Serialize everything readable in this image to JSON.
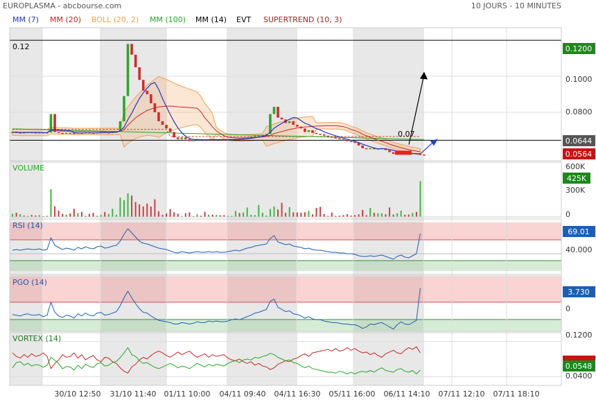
{
  "header": {
    "title": "EUROPLASMA - abcbourse.com",
    "period": "10 JOURS - 10 MINUTES"
  },
  "legend": [
    {
      "label": "MM (7)",
      "color": "#2233cc"
    },
    {
      "label": "MM (20)",
      "color": "#cc2222"
    },
    {
      "label": "BOLL (20, 2)",
      "color": "#f0a050"
    },
    {
      "label": "MM (100)",
      "color": "#22aa22"
    },
    {
      "label": "MM (14)",
      "color": "#000000"
    },
    {
      "label": "EVT",
      "color": "#000000"
    },
    {
      "label": "SUPERTREND (10, 3)",
      "color": "#aa2222"
    }
  ],
  "price_panel": {
    "hline_label": "0.12",
    "annotation": "0.07",
    "yticks": [
      "0.1000",
      "0.0800"
    ],
    "badges": [
      {
        "text": "0.1200",
        "value": 0.12,
        "color": "#1a8a1a"
      },
      {
        "text": "0.0644",
        "value": 0.0644,
        "color": "#555555"
      },
      {
        "text": "0.0564",
        "value": 0.0564,
        "color": "#cc1111"
      }
    ]
  },
  "volume_panel": {
    "label": "VOLUME",
    "yticks": [
      "600K",
      "300K",
      "0"
    ],
    "badge": {
      "text": "425K",
      "value": 425000,
      "color": "#1a8a1a"
    }
  },
  "rsi_panel": {
    "label": "RSI (14)",
    "ytick": "40.000",
    "badge": {
      "text": "69.01",
      "value": 69.01,
      "color": "#1a5fb4"
    }
  },
  "pgo_panel": {
    "label": "PGO (14)",
    "ytick": "0",
    "badge": {
      "text": "3.730",
      "value": 3.73,
      "color": "#1a5fb4"
    }
  },
  "vortex_panel": {
    "label": "VORTEX (14)",
    "yticks": [
      "0.1200",
      "0.0400"
    ],
    "badges": [
      {
        "text": "",
        "color": "#cc1111"
      },
      {
        "text": "0.0548",
        "color": "#1a8a1a"
      }
    ]
  },
  "xaxis": {
    "labels": [
      "30/10 12:50",
      "31/10 11:40",
      "01/11 10:00",
      "04/11 09:40",
      "04/11 16:30",
      "05/11 16:00",
      "06/11 14:10",
      "07/11 12:10",
      "07/11 18:10"
    ]
  },
  "chart_data": {
    "type": "line",
    "title": "EUROPLASMA - abcbourse.com",
    "period": "10 JOURS - 10 MINUTES",
    "x_ticks": [
      "30/10 12:50",
      "31/10 11:40",
      "01/11 10:00",
      "04/11 09:40",
      "04/11 16:30",
      "05/11 16:00",
      "06/11 14:10",
      "07/11 12:10",
      "07/11 18:10"
    ],
    "price": {
      "ylim": [
        0.053,
        0.127
      ],
      "yticks": [
        0.08,
        0.1
      ],
      "close": [
        0.069,
        0.0688,
        0.0686,
        0.0688,
        0.069,
        0.0688,
        0.0686,
        0.0688,
        0.0685,
        0.0687,
        0.079,
        0.069,
        0.0685,
        0.0682,
        0.0686,
        0.0685,
        0.068,
        0.0686,
        0.0684,
        0.0688,
        0.0686,
        0.0685,
        0.0688,
        0.069,
        0.0687,
        0.0688,
        0.069,
        0.0692,
        0.075,
        0.089,
        0.118,
        0.112,
        0.105,
        0.098,
        0.092,
        0.09,
        0.085,
        0.08,
        0.075,
        0.073,
        0.071,
        0.069,
        0.066,
        0.065,
        0.066,
        0.065,
        0.064,
        0.0645,
        0.065,
        0.0648,
        0.0645,
        0.065,
        0.0648,
        0.065,
        0.0648,
        0.0645,
        0.0648,
        0.065,
        0.0652,
        0.065,
        0.0655,
        0.066,
        0.0665,
        0.067,
        0.0672,
        0.0675,
        0.068,
        0.079,
        0.083,
        0.077,
        0.076,
        0.074,
        0.075,
        0.073,
        0.072,
        0.071,
        0.069,
        0.07,
        0.0685,
        0.068,
        0.0678,
        0.067,
        0.0665,
        0.066,
        0.0655,
        0.065,
        0.0645,
        0.064,
        0.0635,
        0.063,
        0.0615,
        0.06,
        0.0598,
        0.06,
        0.0595,
        0.0598,
        0.06,
        0.059,
        0.0578,
        0.0568,
        0.0572,
        0.0575,
        0.057,
        0.0568,
        0.0572,
        0.0568,
        0.0565,
        0.0564
      ],
      "mm7": [
        0.0689,
        0.0689,
        0.0688,
        0.0688,
        0.0688,
        0.0688,
        0.0688,
        0.0688,
        0.0687,
        0.0687,
        0.0702,
        0.0703,
        0.0702,
        0.07,
        0.0699,
        0.0697,
        0.0686,
        0.0685,
        0.0684,
        0.0685,
        0.0685,
        0.0685,
        0.0685,
        0.0686,
        0.0687,
        0.0687,
        0.0688,
        0.0689,
        0.0697,
        0.0717,
        0.0759,
        0.0795,
        0.0837,
        0.0877,
        0.0907,
        0.0934,
        0.0957,
        0.0965,
        0.0927,
        0.0876,
        0.0831,
        0.0788,
        0.0747,
        0.0713,
        0.0686,
        0.0667,
        0.0654,
        0.0649,
        0.0648,
        0.0647,
        0.0647,
        0.0647,
        0.0648,
        0.0648,
        0.0648,
        0.0648,
        0.0648,
        0.0648,
        0.0649,
        0.065,
        0.0651,
        0.0653,
        0.0655,
        0.0658,
        0.0662,
        0.0666,
        0.0671,
        0.0689,
        0.0711,
        0.0725,
        0.0738,
        0.075,
        0.0761,
        0.0771,
        0.0768,
        0.0753,
        0.0739,
        0.0731,
        0.0719,
        0.0709,
        0.0701,
        0.0691,
        0.0683,
        0.0676,
        0.0669,
        0.0663,
        0.0656,
        0.065,
        0.0644,
        0.0638,
        0.0631,
        0.0622,
        0.0615,
        0.0608,
        0.0602,
        0.0596,
        0.0598,
        0.0596,
        0.0593,
        0.0588,
        0.0583,
        0.0579,
        0.0575,
        0.0571,
        0.0571,
        0.057,
        0.0569
      ],
      "mm20": [
        0.0689,
        0.0689,
        0.0688,
        0.0688,
        0.0688,
        0.0688,
        0.0688,
        0.0688,
        0.0687,
        0.0687,
        0.0697,
        0.0697,
        0.0696,
        0.0695,
        0.0695,
        0.0694,
        0.0693,
        0.0693,
        0.0693,
        0.0693,
        0.0693,
        0.0693,
        0.0693,
        0.0693,
        0.0693,
        0.0693,
        0.0693,
        0.0693,
        0.0693,
        0.0703,
        0.0728,
        0.0749,
        0.0769,
        0.0784,
        0.0797,
        0.081,
        0.0818,
        0.0825,
        0.0829,
        0.0832,
        0.0834,
        0.0834,
        0.0833,
        0.083,
        0.0829,
        0.0828,
        0.0826,
        0.0825,
        0.0822,
        0.0802,
        0.0768,
        0.0745,
        0.0718,
        0.0697,
        0.0682,
        0.0669,
        0.0661,
        0.0659,
        0.0658,
        0.0657,
        0.0657,
        0.0658,
        0.0659,
        0.066,
        0.0661,
        0.0663,
        0.0665,
        0.0672,
        0.0681,
        0.0687,
        0.0693,
        0.0698,
        0.0704,
        0.0708,
        0.0713,
        0.0716,
        0.0718,
        0.072,
        0.0722,
        0.0723,
        0.0724,
        0.0725,
        0.0725,
        0.0725,
        0.0725,
        0.0723,
        0.072,
        0.0714,
        0.0704,
        0.0698,
        0.0689,
        0.0678,
        0.0669,
        0.0661,
        0.0653,
        0.0645,
        0.0639,
        0.0631,
        0.0623,
        0.0615,
        0.0609,
        0.0603,
        0.0598,
        0.0592,
        0.0588,
        0.0584,
        0.058
      ],
      "mm100_start": 0.0708,
      "mm100_end": 0.0648,
      "supertrend": [
        0.0705,
        0.0705,
        0.0705,
        0.0705,
        0.0705,
        0.0705,
        0.0705,
        0.0705,
        0.0705,
        0.0705,
        0.0705,
        0.0705,
        0.0705,
        0.0705,
        0.0705,
        0.0705,
        0.0705,
        0.0705,
        0.0705,
        0.0705,
        0.0705,
        0.0705,
        0.0705,
        0.0705,
        0.0705,
        0.0705,
        0.0705,
        0.0705,
        0.0705,
        0.0705,
        0.0705,
        0.0705,
        0.0705,
        0.0705,
        0.0705,
        0.0705,
        0.0705,
        0.0705,
        0.0705,
        0.0705,
        0.0705,
        0.0665,
        0.0665,
        0.0665,
        0.0665,
        0.0665,
        0.0665,
        0.0665,
        0.0665,
        0.0665,
        0.0665,
        0.0665,
        0.0665,
        0.0665,
        0.0665,
        0.0665,
        0.0665,
        0.0665,
        0.0665,
        0.0665,
        0.0665,
        0.0665,
        0.0665,
        0.0665,
        0.0665,
        0.0665,
        0.0665,
        0.0665,
        0.0665,
        0.0665,
        0.0665,
        0.0665,
        0.0665,
        0.0665,
        0.0665,
        0.0665,
        0.0665,
        0.0665,
        0.0665,
        0.0665,
        0.0665,
        0.0665,
        0.0665,
        0.0665,
        0.0665,
        0.0665,
        0.0665,
        0.0665,
        0.0665,
        0.0665,
        0.0665,
        0.0665,
        0.0665,
        0.0665,
        0.0665,
        0.0665,
        0.0665,
        0.0665,
        0.0665,
        0.0665,
        0.0665,
        0.0665,
        0.0665,
        0.0665,
        0.0665,
        0.0665,
        0.0665
      ],
      "hlines": [
        0.12,
        0.0644
      ],
      "arrow_up": {
        "from": [
          0.0632,
          0.062
        ],
        "to": [
          0.0612,
          0.101
        ]
      },
      "arrow_right": {
        "from": [
          0.0612,
          0.057
        ],
        "to": [
          0.0625,
          0.0644
        ]
      }
    },
    "volume": {
      "ylim": [
        0,
        650000
      ],
      "yticks": [
        0,
        300000,
        600000
      ],
      "values": [
        38000,
        51000,
        34000,
        17000,
        13000,
        25000,
        17000,
        22000,
        8000,
        13000,
        330000,
        126000,
        76000,
        35000,
        27000,
        42000,
        97000,
        47000,
        61000,
        14000,
        38000,
        48000,
        14000,
        27000,
        59000,
        35000,
        97000,
        27000,
        230000,
        200000,
        280000,
        254000,
        178000,
        150000,
        125000,
        159000,
        123000,
        210000,
        66000,
        25000,
        41000,
        93000,
        56000,
        38000,
        9000,
        45000,
        53000,
        10000,
        31000,
        15000,
        60000,
        27000,
        28000,
        24000,
        21000,
        23000,
        11000,
        13000,
        71000,
        47000,
        53000,
        111000,
        26000,
        23000,
        141000,
        49000,
        17000,
        95000,
        124000,
        89000,
        168000,
        49000,
        116000,
        55000,
        53000,
        50000,
        56000,
        73000,
        30000,
        107000,
        120000,
        33000,
        11000,
        52000,
        12000,
        16000,
        22000,
        32000,
        17000,
        22000,
        31000,
        83000,
        21000,
        107000,
        50000,
        43000,
        42000,
        32000,
        112000,
        29000,
        43000,
        75000,
        27000,
        29000,
        48000,
        60000,
        425000
      ],
      "up": [
        true,
        false,
        true,
        false,
        true,
        false,
        false,
        true,
        false,
        true,
        true,
        false,
        false,
        false,
        true,
        false,
        false,
        true,
        false,
        true,
        false,
        false,
        true,
        true,
        false,
        true,
        true,
        true,
        true,
        true,
        true,
        false,
        false,
        false,
        false,
        false,
        false,
        false,
        false,
        false,
        false,
        false,
        false,
        false,
        true,
        false,
        false,
        true,
        true,
        false,
        false,
        true,
        false,
        true,
        false,
        false,
        true,
        true,
        true,
        false,
        true,
        true,
        true,
        true,
        true,
        true,
        true,
        true,
        true,
        false,
        false,
        false,
        true,
        false,
        false,
        false,
        false,
        true,
        false,
        false,
        false,
        false,
        false,
        false,
        false,
        false,
        false,
        false,
        false,
        false,
        false,
        false,
        false,
        true,
        false,
        true,
        true,
        false,
        false,
        false,
        true,
        true,
        false,
        false,
        true,
        false,
        true
      ]
    },
    "rsi": {
      "ylim": [
        10,
        90
      ],
      "upper_band": [
        60,
        85
      ],
      "lower_band": [
        15,
        30
      ],
      "ytick": 40,
      "last": 69.01,
      "values": [
        45,
        46,
        45,
        46,
        47,
        46,
        46,
        47,
        45,
        46,
        63,
        52,
        49,
        46,
        48,
        47,
        45,
        49,
        47,
        50,
        48,
        47,
        50,
        51,
        48,
        49,
        51,
        52,
        58,
        68,
        76,
        70,
        64,
        58,
        55,
        54,
        52,
        50,
        48,
        47,
        46,
        44,
        42,
        41,
        43,
        42,
        41,
        42,
        43,
        42,
        42,
        43,
        42,
        43,
        42,
        42,
        43,
        44,
        45,
        44,
        46,
        48,
        49,
        51,
        52,
        53,
        54,
        62,
        66,
        57,
        55,
        53,
        54,
        51,
        50,
        49,
        47,
        48,
        46,
        45,
        45,
        44,
        43,
        42,
        42,
        41,
        41,
        40,
        40,
        39,
        37,
        36,
        36,
        37,
        36,
        37,
        38,
        36,
        34,
        32,
        36,
        38,
        35,
        34,
        37,
        40,
        69
      ]
    },
    "pgo": {
      "ylim": [
        -2.2,
        5.4
      ],
      "ytick": 0,
      "last": 3.73,
      "values": [
        0.1,
        0.0,
        -0.1,
        0.1,
        0.2,
        0.0,
        0.0,
        0.1,
        -0.2,
        0.0,
        1.8,
        0.4,
        -0.1,
        -0.3,
        0.0,
        -0.1,
        -0.4,
        0.2,
        -0.1,
        0.3,
        0.0,
        -0.1,
        0.3,
        0.4,
        0.0,
        0.1,
        0.3,
        0.5,
        1.3,
        2.4,
        3.3,
        2.4,
        1.6,
        0.9,
        0.4,
        0.3,
        -0.1,
        -0.4,
        -0.7,
        -0.8,
        -0.9,
        -1.0,
        -1.2,
        -1.2,
        -1.0,
        -1.1,
        -1.2,
        -1.1,
        -0.9,
        -1.0,
        -1.0,
        -0.8,
        -0.9,
        -0.8,
        -0.9,
        -0.9,
        -0.8,
        -0.6,
        -0.5,
        -0.6,
        -0.4,
        -0.2,
        0.0,
        0.3,
        0.4,
        0.6,
        0.8,
        1.9,
        2.2,
        1.1,
        0.8,
        0.5,
        0.6,
        0.2,
        0.1,
        -0.1,
        -0.4,
        -0.2,
        -0.5,
        -0.6,
        -0.6,
        -0.8,
        -0.9,
        -1.0,
        -1.0,
        -1.1,
        -1.2,
        -1.2,
        -1.3,
        -1.3,
        -1.5,
        -1.8,
        -1.6,
        -1.2,
        -1.3,
        -1.1,
        -1.0,
        -1.3,
        -1.6,
        -1.9,
        -1.3,
        -0.9,
        -1.2,
        -1.3,
        -1.0,
        -0.7,
        3.73
      ]
    },
    "vortex": {
      "ylim": [
        0.02,
        0.14
      ],
      "yticks": [
        0.04,
        0.12
      ],
      "vi_plus_last": 0.0548,
      "vi_plus": [
        0.06,
        0.072,
        0.074,
        0.066,
        0.07,
        0.064,
        0.067,
        0.066,
        0.061,
        0.066,
        0.084,
        0.077,
        0.07,
        0.058,
        0.063,
        0.062,
        0.055,
        0.066,
        0.058,
        0.068,
        0.063,
        0.061,
        0.069,
        0.072,
        0.064,
        0.066,
        0.072,
        0.075,
        0.083,
        0.094,
        0.106,
        0.09,
        0.086,
        0.076,
        0.07,
        0.072,
        0.066,
        0.061,
        0.058,
        0.062,
        0.066,
        0.07,
        0.066,
        0.06,
        0.064,
        0.062,
        0.058,
        0.064,
        0.07,
        0.066,
        0.062,
        0.068,
        0.064,
        0.068,
        0.066,
        0.064,
        0.07,
        0.074,
        0.076,
        0.072,
        0.078,
        0.08,
        0.078,
        0.084,
        0.082,
        0.086,
        0.088,
        0.093,
        0.09,
        0.084,
        0.08,
        0.076,
        0.078,
        0.072,
        0.07,
        0.064,
        0.06,
        0.064,
        0.058,
        0.056,
        0.054,
        0.052,
        0.05,
        0.05,
        0.048,
        0.052,
        0.05,
        0.046,
        0.05,
        0.046,
        0.05,
        0.052,
        0.05,
        0.054,
        0.05,
        0.056,
        0.06,
        0.054,
        0.052,
        0.05,
        0.056,
        0.058,
        0.052,
        0.05,
        0.054,
        0.046,
        0.0548
      ],
      "vi_minus": [
        0.094,
        0.086,
        0.082,
        0.09,
        0.084,
        0.092,
        0.086,
        0.088,
        0.094,
        0.086,
        0.058,
        0.07,
        0.078,
        0.09,
        0.084,
        0.086,
        0.094,
        0.082,
        0.09,
        0.078,
        0.084,
        0.088,
        0.078,
        0.074,
        0.084,
        0.082,
        0.074,
        0.07,
        0.06,
        0.052,
        0.048,
        0.062,
        0.068,
        0.078,
        0.084,
        0.08,
        0.088,
        0.094,
        0.098,
        0.094,
        0.088,
        0.084,
        0.09,
        0.096,
        0.09,
        0.094,
        0.098,
        0.09,
        0.084,
        0.088,
        0.092,
        0.084,
        0.09,
        0.086,
        0.088,
        0.09,
        0.082,
        0.078,
        0.076,
        0.08,
        0.074,
        0.07,
        0.074,
        0.066,
        0.07,
        0.064,
        0.062,
        0.056,
        0.06,
        0.068,
        0.072,
        0.076,
        0.074,
        0.08,
        0.082,
        0.088,
        0.092,
        0.086,
        0.094,
        0.096,
        0.098,
        0.1,
        0.102,
        0.098,
        0.104,
        0.098,
        0.1,
        0.106,
        0.1,
        0.104,
        0.098,
        0.094,
        0.096,
        0.09,
        0.094,
        0.088,
        0.084,
        0.092,
        0.096,
        0.1,
        0.094,
        0.092,
        0.1,
        0.106,
        0.102,
        0.108,
        0.094
      ]
    }
  }
}
